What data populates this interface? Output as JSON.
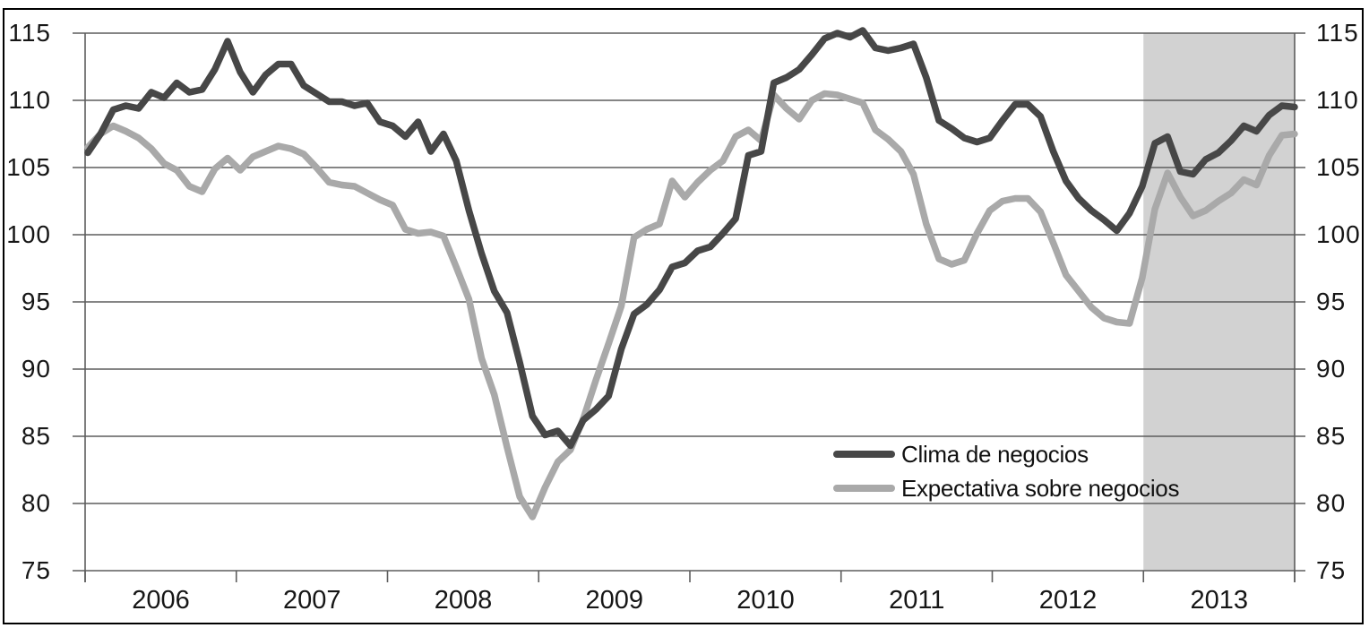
{
  "chart_data": {
    "type": "line",
    "title": "",
    "frequency": "monthly",
    "x_range": {
      "start": "2006-01",
      "end": "2013-12"
    },
    "x_tick_labels": [
      "2006",
      "2007",
      "2008",
      "2009",
      "2010",
      "2011",
      "2012",
      "2013"
    ],
    "y_ticks": [
      115,
      110,
      105,
      100,
      95,
      90,
      85,
      80,
      75
    ],
    "ylim": [
      75,
      115
    ],
    "grid": true,
    "dual_y_axis": true,
    "legend_position": "inside-bottom-right",
    "shaded_region": {
      "x_label": "2013",
      "color": "#d2d2d2"
    },
    "colors": {
      "grid": "#5d5d5d",
      "frame": "#000000",
      "text": "#161616"
    },
    "series": [
      {
        "name": "Clima de negocios",
        "color": "#474747",
        "values": [
          106.1,
          107.5,
          109.3,
          109.6,
          109.4,
          110.6,
          110.2,
          111.3,
          110.6,
          110.8,
          112.3,
          114.4,
          112.1,
          110.6,
          111.9,
          112.7,
          112.7,
          111.1,
          110.5,
          109.9,
          109.9,
          109.6,
          109.8,
          108.4,
          108.1,
          107.3,
          108.4,
          106.2,
          107.5,
          105.5,
          101.8,
          98.6,
          95.8,
          94.2,
          90.5,
          86.5,
          85.1,
          85.4,
          84.3,
          86.2,
          87.0,
          88.0,
          91.5,
          94.1,
          94.8,
          95.9,
          97.6,
          97.9,
          98.8,
          99.1,
          100.1,
          101.2,
          105.9,
          106.2,
          111.3,
          111.7,
          112.3,
          113.4,
          114.6,
          115.0,
          114.7,
          115.2,
          113.9,
          113.7,
          113.9,
          114.2,
          111.7,
          108.5,
          107.9,
          107.2,
          106.9,
          107.2,
          108.5,
          109.7,
          109.7,
          108.8,
          106.2,
          104.0,
          102.7,
          101.8,
          101.1,
          100.3,
          101.6,
          103.6,
          106.8,
          107.3,
          104.7,
          104.5,
          105.6,
          106.1,
          107.0,
          108.1,
          107.7,
          108.9,
          109.6,
          109.5
        ]
      },
      {
        "name": "Expectativa sobre negocios",
        "color": "#a9a9a9",
        "values": [
          106.5,
          107.5,
          108.1,
          107.7,
          107.2,
          106.4,
          105.3,
          104.8,
          103.6,
          103.2,
          104.9,
          105.7,
          104.8,
          105.8,
          106.2,
          106.6,
          106.4,
          106.0,
          105.0,
          103.9,
          103.7,
          103.6,
          103.1,
          102.6,
          102.2,
          100.4,
          100.1,
          100.2,
          99.9,
          97.6,
          95.2,
          90.8,
          88.1,
          84.2,
          80.5,
          79.0,
          81.2,
          83.1,
          84.0,
          86.3,
          89.2,
          91.9,
          94.7,
          99.8,
          100.4,
          100.8,
          104.0,
          102.8,
          103.9,
          104.8,
          105.5,
          107.3,
          107.8,
          107.0,
          110.4,
          109.4,
          108.6,
          110.0,
          110.5,
          110.4,
          110.1,
          109.8,
          107.8,
          107.1,
          106.2,
          104.5,
          100.8,
          98.2,
          97.8,
          98.1,
          100.1,
          101.8,
          102.5,
          102.7,
          102.7,
          101.7,
          99.4,
          97.0,
          95.8,
          94.6,
          93.8,
          93.5,
          93.4,
          96.8,
          101.9,
          104.6,
          102.8,
          101.4,
          101.8,
          102.5,
          103.1,
          104.1,
          103.7,
          105.9,
          107.4,
          107.5
        ]
      }
    ]
  }
}
